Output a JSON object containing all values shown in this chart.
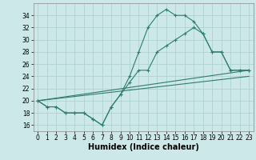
{
  "xlabel": "Humidex (Indice chaleur)",
  "x_ticks": [
    0,
    1,
    2,
    3,
    4,
    5,
    6,
    7,
    8,
    9,
    10,
    11,
    12,
    13,
    14,
    15,
    16,
    17,
    18,
    19,
    20,
    21,
    22,
    23
  ],
  "ylim": [
    15,
    36
  ],
  "xlim": [
    -0.5,
    23.5
  ],
  "y_ticks": [
    16,
    18,
    20,
    22,
    24,
    26,
    28,
    30,
    32,
    34
  ],
  "line1_x": [
    0,
    1,
    2,
    3,
    4,
    5,
    6,
    7,
    8,
    9,
    10,
    11,
    12,
    13,
    14,
    15,
    16,
    17,
    18,
    19,
    20,
    21,
    22,
    23
  ],
  "line1_y": [
    20,
    19,
    19,
    18,
    18,
    18,
    17,
    16,
    19,
    21,
    24,
    28,
    32,
    34,
    35,
    34,
    34,
    33,
    31,
    28,
    28,
    25,
    25,
    25
  ],
  "line2_x": [
    0,
    1,
    2,
    3,
    4,
    5,
    6,
    7,
    8,
    9,
    10,
    11,
    12,
    13,
    14,
    15,
    16,
    17,
    18,
    19,
    20,
    21,
    22,
    23
  ],
  "line2_y": [
    20,
    19,
    19,
    18,
    18,
    18,
    17,
    16,
    19,
    21,
    23,
    25,
    25,
    28,
    29,
    30,
    31,
    32,
    31,
    28,
    28,
    25,
    25,
    25
  ],
  "line3_x": [
    0,
    23
  ],
  "line3_y": [
    20,
    24
  ],
  "line4_x": [
    0,
    23
  ],
  "line4_y": [
    20,
    25
  ],
  "color": "#2e7d6e",
  "bg_color": "#cce8e8",
  "grid_color": "#aacece",
  "xlabel_fontsize": 7,
  "tick_fontsize": 5.5
}
